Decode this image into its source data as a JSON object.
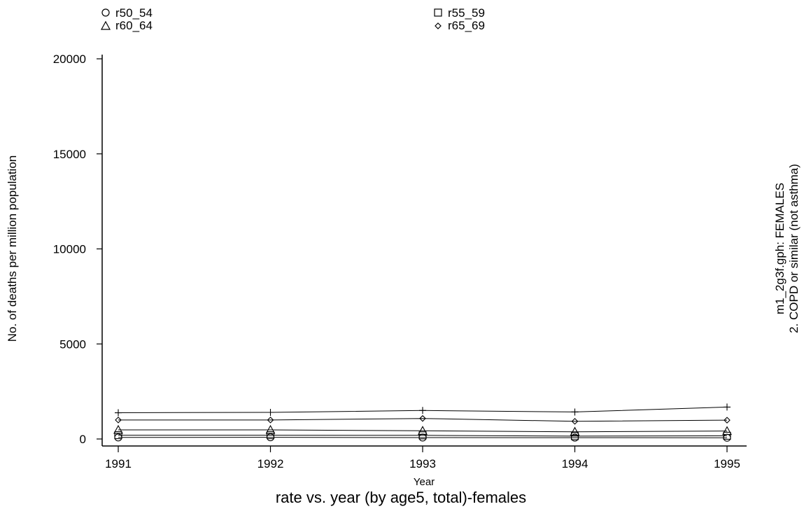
{
  "chart_data": {
    "type": "line",
    "title": "rate vs. year (by age5, total)-females",
    "xlabel": "Year",
    "ylabel": "No. of deaths per million population",
    "side_title": [
      "m1_2g3f.gph: FEMALES",
      "2.  COPD or similar (not asthma)"
    ],
    "x": [
      1991,
      1992,
      1993,
      1994,
      1995
    ],
    "xlim": [
      1991,
      1995
    ],
    "ylim": [
      0,
      20000
    ],
    "x_ticks": [
      1991,
      1992,
      1993,
      1994,
      1995
    ],
    "y_ticks": [
      0,
      5000,
      10000,
      15000,
      20000
    ],
    "grid": false,
    "legend_position": "top",
    "series": [
      {
        "name": "r50_54",
        "marker": "circle",
        "values": [
          80,
          90,
          75,
          70,
          65
        ]
      },
      {
        "name": "r55_59",
        "marker": "square",
        "values": [
          200,
          200,
          190,
          150,
          170
        ]
      },
      {
        "name": "r60_64",
        "marker": "triangle",
        "values": [
          480,
          480,
          430,
          380,
          420
        ]
      },
      {
        "name": "r65_69",
        "marker": "diamond",
        "values": [
          1000,
          1000,
          1080,
          930,
          990
        ]
      },
      {
        "name": "",
        "marker": "plus",
        "values": [
          1380,
          1400,
          1500,
          1420,
          1680
        ]
      }
    ]
  }
}
